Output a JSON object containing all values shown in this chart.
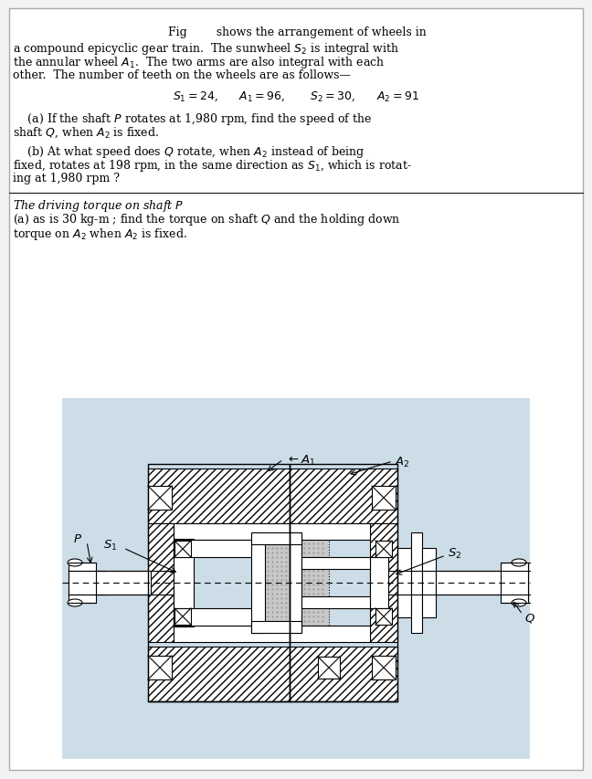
{
  "bg_color": "#f2f2f2",
  "text_bg_color": "#ffffff",
  "diagram_bg_color": "#ccdde8",
  "hatch_color": "#888888",
  "line1": "Fig        shows the arrangement of wheels in",
  "line2": "a compound epicyclic gear train.  The sunwheel $S_2$ is integral with",
  "line3": "the annular wheel $A_1$.  The two arms are also integral with each",
  "line4": "other.  The number of teeth on the wheels are as follows—",
  "teeth": "$S_1=24$,      $A_1=96$,       $S_2=30$,      $A_2=91$",
  "pa1": "    (a) If the shaft $P$ rotates at 1,980 rpm, find the speed of the",
  "pa2": "shaft $Q$, when $A_2$ is fixed.",
  "pb1": "    (b) At what speed does $Q$ rotate, when $A_2$ instead of being",
  "pb2": "fixed, rotates at 198 rpm, in the same direction as $S_1$, which is rotat-",
  "pb3": "ing at 1,980 rpm ?",
  "tq0": "The driving torque on shaft $P$",
  "tq1": "(a) as is 30 kg-m ; find the torque on shaft $Q$ and the holding down",
  "tq2": "torque on $A_2$ when $A_2$ is fixed."
}
